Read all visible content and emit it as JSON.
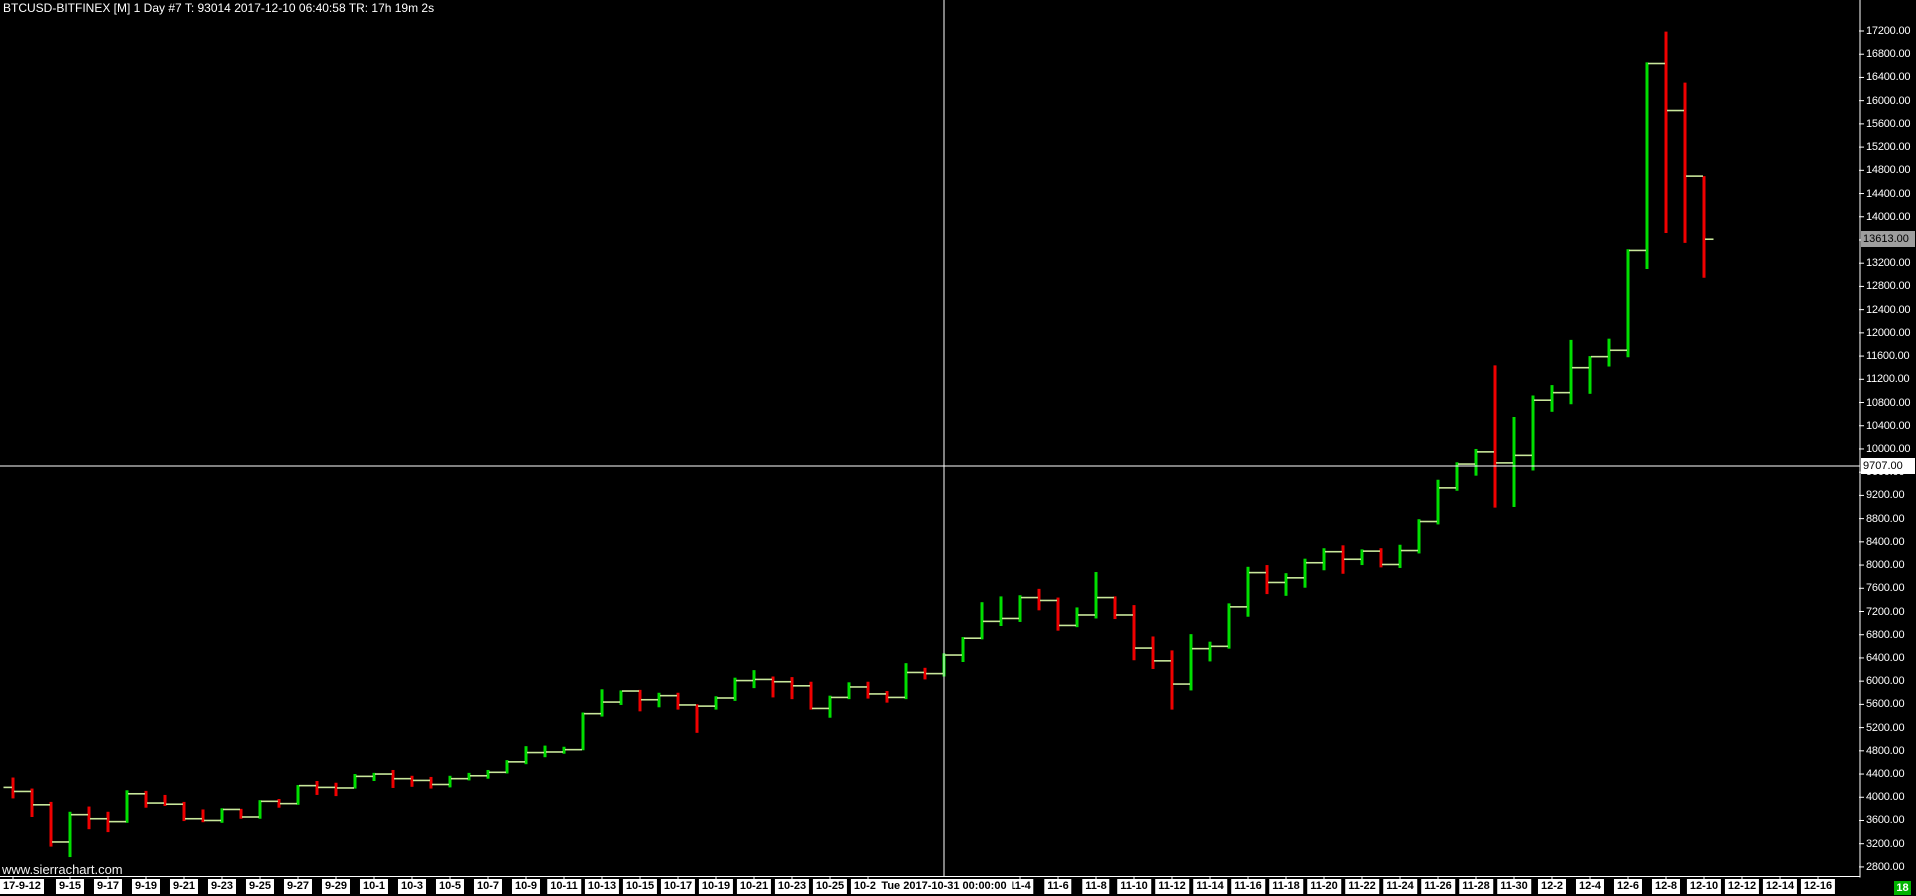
{
  "window": {
    "title": "BTCUSD-BITFINEX [M]  1 Day   #7 T: 93014 2017-12-10 06:40:58 TR: 17h 19m 2s"
  },
  "watermark": "www.sierrachart.com",
  "badge": {
    "label": "18"
  },
  "crosshair": {
    "price_label": "9707.00",
    "date_label": "Tue 2017-10-31  00:00:00",
    "bar_index": 49,
    "price": 9707
  },
  "last_price": {
    "label": "13613.00",
    "value": 13613
  },
  "colors": {
    "background": "#000000",
    "up": "#00df00",
    "down": "#f00000",
    "open_close_tick": "#c9e79b",
    "crosshair": "#ffffff",
    "axis_line": "#ffffff",
    "axis_text": "#ffffff",
    "label_box_bg": "#ffffff",
    "label_box_text": "#000000",
    "last_price_bg": "#9e9e9e",
    "badge_bg": "#00b300"
  },
  "price_axis": {
    "min": 2800,
    "max": 17200,
    "step": 400,
    "labels": [
      "2800.00",
      "3200.00",
      "3600.00",
      "4000.00",
      "4400.00",
      "4800.00",
      "5200.00",
      "5600.00",
      "6000.00",
      "6400.00",
      "6800.00",
      "7200.00",
      "7600.00",
      "8000.00",
      "8400.00",
      "8800.00",
      "9200.00",
      "9600.00",
      "10000.00",
      "10400.00",
      "10800.00",
      "11200.00",
      "11600.00",
      "12000.00",
      "12400.00",
      "12800.00",
      "13200.00",
      "13600.00",
      "14000.00",
      "14400.00",
      "14800.00",
      "15200.00",
      "15600.00",
      "16000.00",
      "16400.00",
      "16800.00",
      "17200.00"
    ]
  },
  "date_axis": {
    "labels": [
      {
        "t": "17-9-12",
        "k": 0
      },
      {
        "t": "9-15",
        "k": 3
      },
      {
        "t": "9-17",
        "k": 5
      },
      {
        "t": "9-19",
        "k": 7
      },
      {
        "t": "9-21",
        "k": 9
      },
      {
        "t": "9-23",
        "k": 11
      },
      {
        "t": "9-25",
        "k": 13
      },
      {
        "t": "9-27",
        "k": 15
      },
      {
        "t": "9-29",
        "k": 17
      },
      {
        "t": "10-1",
        "k": 19
      },
      {
        "t": "10-3",
        "k": 21
      },
      {
        "t": "10-5",
        "k": 23
      },
      {
        "t": "10-7",
        "k": 25
      },
      {
        "t": "10-9",
        "k": 27
      },
      {
        "t": "10-11",
        "k": 29
      },
      {
        "t": "10-13",
        "k": 31
      },
      {
        "t": "10-15",
        "k": 33
      },
      {
        "t": "10-17",
        "k": 35
      },
      {
        "t": "10-19",
        "k": 37
      },
      {
        "t": "10-21",
        "k": 39
      },
      {
        "t": "10-23",
        "k": 41
      },
      {
        "t": "10-25",
        "k": 43
      },
      {
        "t": "10-27",
        "k": 45
      },
      {
        "t": "11-4",
        "k": 53
      },
      {
        "t": "11-6",
        "k": 55
      },
      {
        "t": "11-8",
        "k": 57
      },
      {
        "t": "11-10",
        "k": 59
      },
      {
        "t": "11-12",
        "k": 61
      },
      {
        "t": "11-14",
        "k": 63
      },
      {
        "t": "11-16",
        "k": 65
      },
      {
        "t": "11-18",
        "k": 67
      },
      {
        "t": "11-20",
        "k": 69
      },
      {
        "t": "11-22",
        "k": 71
      },
      {
        "t": "11-24",
        "k": 73
      },
      {
        "t": "11-26",
        "k": 75
      },
      {
        "t": "11-28",
        "k": 77
      },
      {
        "t": "11-30",
        "k": 79
      },
      {
        "t": "12-2",
        "k": 81
      },
      {
        "t": "12-4",
        "k": 83
      },
      {
        "t": "12-6",
        "k": 85
      },
      {
        "t": "12-8",
        "k": 87
      },
      {
        "t": "12-10",
        "k": 89
      },
      {
        "t": "12-12",
        "k": 91
      },
      {
        "t": "12-14",
        "k": 93
      },
      {
        "t": "12-16",
        "k": 95
      }
    ]
  },
  "chart_data": {
    "type": "ohlc_bar",
    "symbol": "BTCUSD-BITFINEX",
    "period": "1 Day",
    "ylim": [
      2800,
      17200
    ],
    "grid": false,
    "bars": [
      [
        "9-12",
        4170,
        4340,
        3980,
        4100
      ],
      [
        "9-13",
        4100,
        4150,
        3660,
        3870
      ],
      [
        "9-14",
        3870,
        3920,
        3150,
        3230
      ],
      [
        "9-15",
        3230,
        3750,
        2970,
        3700
      ],
      [
        "9-16",
        3700,
        3840,
        3450,
        3630
      ],
      [
        "9-17",
        3630,
        3750,
        3400,
        3580
      ],
      [
        "9-18",
        3580,
        4120,
        3560,
        4060
      ],
      [
        "9-19",
        4060,
        4110,
        3820,
        3900
      ],
      [
        "9-20",
        3900,
        4040,
        3850,
        3880
      ],
      [
        "9-21",
        3880,
        3920,
        3590,
        3630
      ],
      [
        "9-22",
        3630,
        3790,
        3570,
        3600
      ],
      [
        "9-23",
        3600,
        3810,
        3560,
        3790
      ],
      [
        "9-24",
        3790,
        3800,
        3630,
        3660
      ],
      [
        "9-25",
        3660,
        3950,
        3630,
        3930
      ],
      [
        "9-26",
        3930,
        3970,
        3820,
        3890
      ],
      [
        "9-27",
        3890,
        4210,
        3870,
        4200
      ],
      [
        "9-28",
        4200,
        4280,
        4040,
        4170
      ],
      [
        "9-29",
        4170,
        4250,
        4020,
        4160
      ],
      [
        "9-30",
        4160,
        4400,
        4150,
        4360
      ],
      [
        "10-1",
        4360,
        4420,
        4280,
        4400
      ],
      [
        "10-2",
        4400,
        4470,
        4160,
        4320
      ],
      [
        "10-3",
        4320,
        4370,
        4180,
        4290
      ],
      [
        "10-4",
        4290,
        4350,
        4150,
        4220
      ],
      [
        "10-5",
        4220,
        4370,
        4170,
        4320
      ],
      [
        "10-6",
        4320,
        4420,
        4290,
        4370
      ],
      [
        "10-7",
        4370,
        4470,
        4320,
        4430
      ],
      [
        "10-8",
        4430,
        4640,
        4410,
        4610
      ],
      [
        "10-9",
        4610,
        4880,
        4570,
        4770
      ],
      [
        "10-10",
        4770,
        4890,
        4690,
        4780
      ],
      [
        "10-11",
        4780,
        4870,
        4750,
        4820
      ],
      [
        "10-12",
        4820,
        5460,
        4810,
        5440
      ],
      [
        "10-13",
        5440,
        5860,
        5390,
        5640
      ],
      [
        "10-14",
        5640,
        5840,
        5590,
        5830
      ],
      [
        "10-15",
        5830,
        5850,
        5480,
        5680
      ],
      [
        "10-16",
        5680,
        5800,
        5550,
        5750
      ],
      [
        "10-17",
        5750,
        5800,
        5510,
        5590
      ],
      [
        "10-18",
        5590,
        5600,
        5110,
        5570
      ],
      [
        "10-19",
        5570,
        5740,
        5510,
        5710
      ],
      [
        "10-20",
        5710,
        6060,
        5660,
        6010
      ],
      [
        "10-21",
        6010,
        6190,
        5880,
        6030
      ],
      [
        "10-22",
        6030,
        6080,
        5720,
        5990
      ],
      [
        "10-23",
        5990,
        6070,
        5690,
        5920
      ],
      [
        "10-24",
        5920,
        5990,
        5510,
        5530
      ],
      [
        "10-25",
        5530,
        5750,
        5370,
        5720
      ],
      [
        "10-26",
        5720,
        5980,
        5690,
        5900
      ],
      [
        "10-27",
        5900,
        5990,
        5700,
        5780
      ],
      [
        "10-28",
        5780,
        5830,
        5630,
        5720
      ],
      [
        "10-29",
        5720,
        6310,
        5690,
        6150
      ],
      [
        "10-30",
        6150,
        6230,
        6030,
        6130
      ],
      [
        "10-31",
        6130,
        6480,
        6080,
        6450
      ],
      [
        "11-1",
        6450,
        6760,
        6330,
        6740
      ],
      [
        "11-2",
        6740,
        7360,
        6720,
        7030
      ],
      [
        "11-3",
        7030,
        7460,
        6950,
        7080
      ],
      [
        "11-4",
        7080,
        7480,
        7020,
        7440
      ],
      [
        "11-5",
        7440,
        7590,
        7220,
        7390
      ],
      [
        "11-6",
        7390,
        7440,
        6870,
        6960
      ],
      [
        "11-7",
        6960,
        7270,
        6930,
        7140
      ],
      [
        "11-8",
        7140,
        7880,
        7080,
        7440
      ],
      [
        "11-9",
        7440,
        7460,
        7070,
        7140
      ],
      [
        "11-10",
        7140,
        7310,
        6360,
        6570
      ],
      [
        "11-11",
        6570,
        6770,
        6210,
        6350
      ],
      [
        "11-12",
        6350,
        6530,
        5510,
        5950
      ],
      [
        "11-13",
        5950,
        6810,
        5840,
        6560
      ],
      [
        "11-14",
        6560,
        6680,
        6340,
        6600
      ],
      [
        "11-15",
        6600,
        7340,
        6560,
        7280
      ],
      [
        "11-16",
        7280,
        7970,
        7110,
        7870
      ],
      [
        "11-17",
        7870,
        8000,
        7500,
        7700
      ],
      [
        "11-18",
        7700,
        7860,
        7470,
        7780
      ],
      [
        "11-19",
        7780,
        8110,
        7610,
        8040
      ],
      [
        "11-20",
        8040,
        8290,
        7910,
        8230
      ],
      [
        "11-21",
        8230,
        8340,
        7850,
        8100
      ],
      [
        "11-22",
        8100,
        8270,
        8000,
        8240
      ],
      [
        "11-23",
        8240,
        8290,
        7960,
        8010
      ],
      [
        "11-24",
        8010,
        8350,
        7950,
        8250
      ],
      [
        "11-25",
        8250,
        8790,
        8200,
        8750
      ],
      [
        "11-26",
        8750,
        9470,
        8700,
        9330
      ],
      [
        "11-27",
        9330,
        9770,
        9280,
        9740
      ],
      [
        "11-28",
        9740,
        10000,
        9540,
        9950
      ],
      [
        "11-29",
        9950,
        11440,
        8990,
        9760
      ],
      [
        "11-30",
        9760,
        10550,
        9000,
        9890
      ],
      [
        "12-1",
        9890,
        10920,
        9630,
        10840
      ],
      [
        "12-2",
        10840,
        11100,
        10640,
        10970
      ],
      [
        "12-3",
        10970,
        11880,
        10770,
        11400
      ],
      [
        "12-4",
        11400,
        11600,
        10950,
        11590
      ],
      [
        "12-5",
        11590,
        11900,
        11420,
        11700
      ],
      [
        "12-6",
        11700,
        13440,
        11580,
        13420
      ],
      [
        "12-7",
        13420,
        16660,
        13100,
        16640
      ],
      [
        "12-8",
        16640,
        17190,
        13720,
        15830
      ],
      [
        "12-9",
        15830,
        16310,
        13550,
        14700
      ],
      [
        "12-10",
        14700,
        14700,
        12950,
        13613
      ]
    ]
  }
}
